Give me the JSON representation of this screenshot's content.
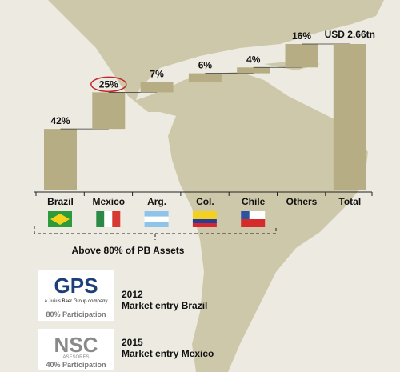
{
  "chart_data": {
    "type": "waterfall",
    "categories": [
      "Brazil",
      "Mexico",
      "Arg.",
      "Col.",
      "Chile",
      "Others"
    ],
    "values": [
      42,
      25,
      7,
      6,
      4,
      16
    ],
    "value_labels": [
      "42%",
      "25%",
      "7%",
      "6%",
      "4%",
      "16%"
    ],
    "color": "#b6ad84",
    "total": {
      "label": "Total",
      "value_label": "USD 2.66tn"
    },
    "bracket_label": "Above 80% of PB Assets"
  },
  "entries": [
    {
      "logo": "GPS",
      "logo_sub": "a Julius Baer Group company",
      "participation": "80% Participation",
      "year": "2012",
      "text": "Market entry Brazil"
    },
    {
      "logo": "NSC",
      "logo_sub": "ASESORES",
      "participation": "40% Participation",
      "year": "2015",
      "text": "Market entry Mexico"
    }
  ]
}
